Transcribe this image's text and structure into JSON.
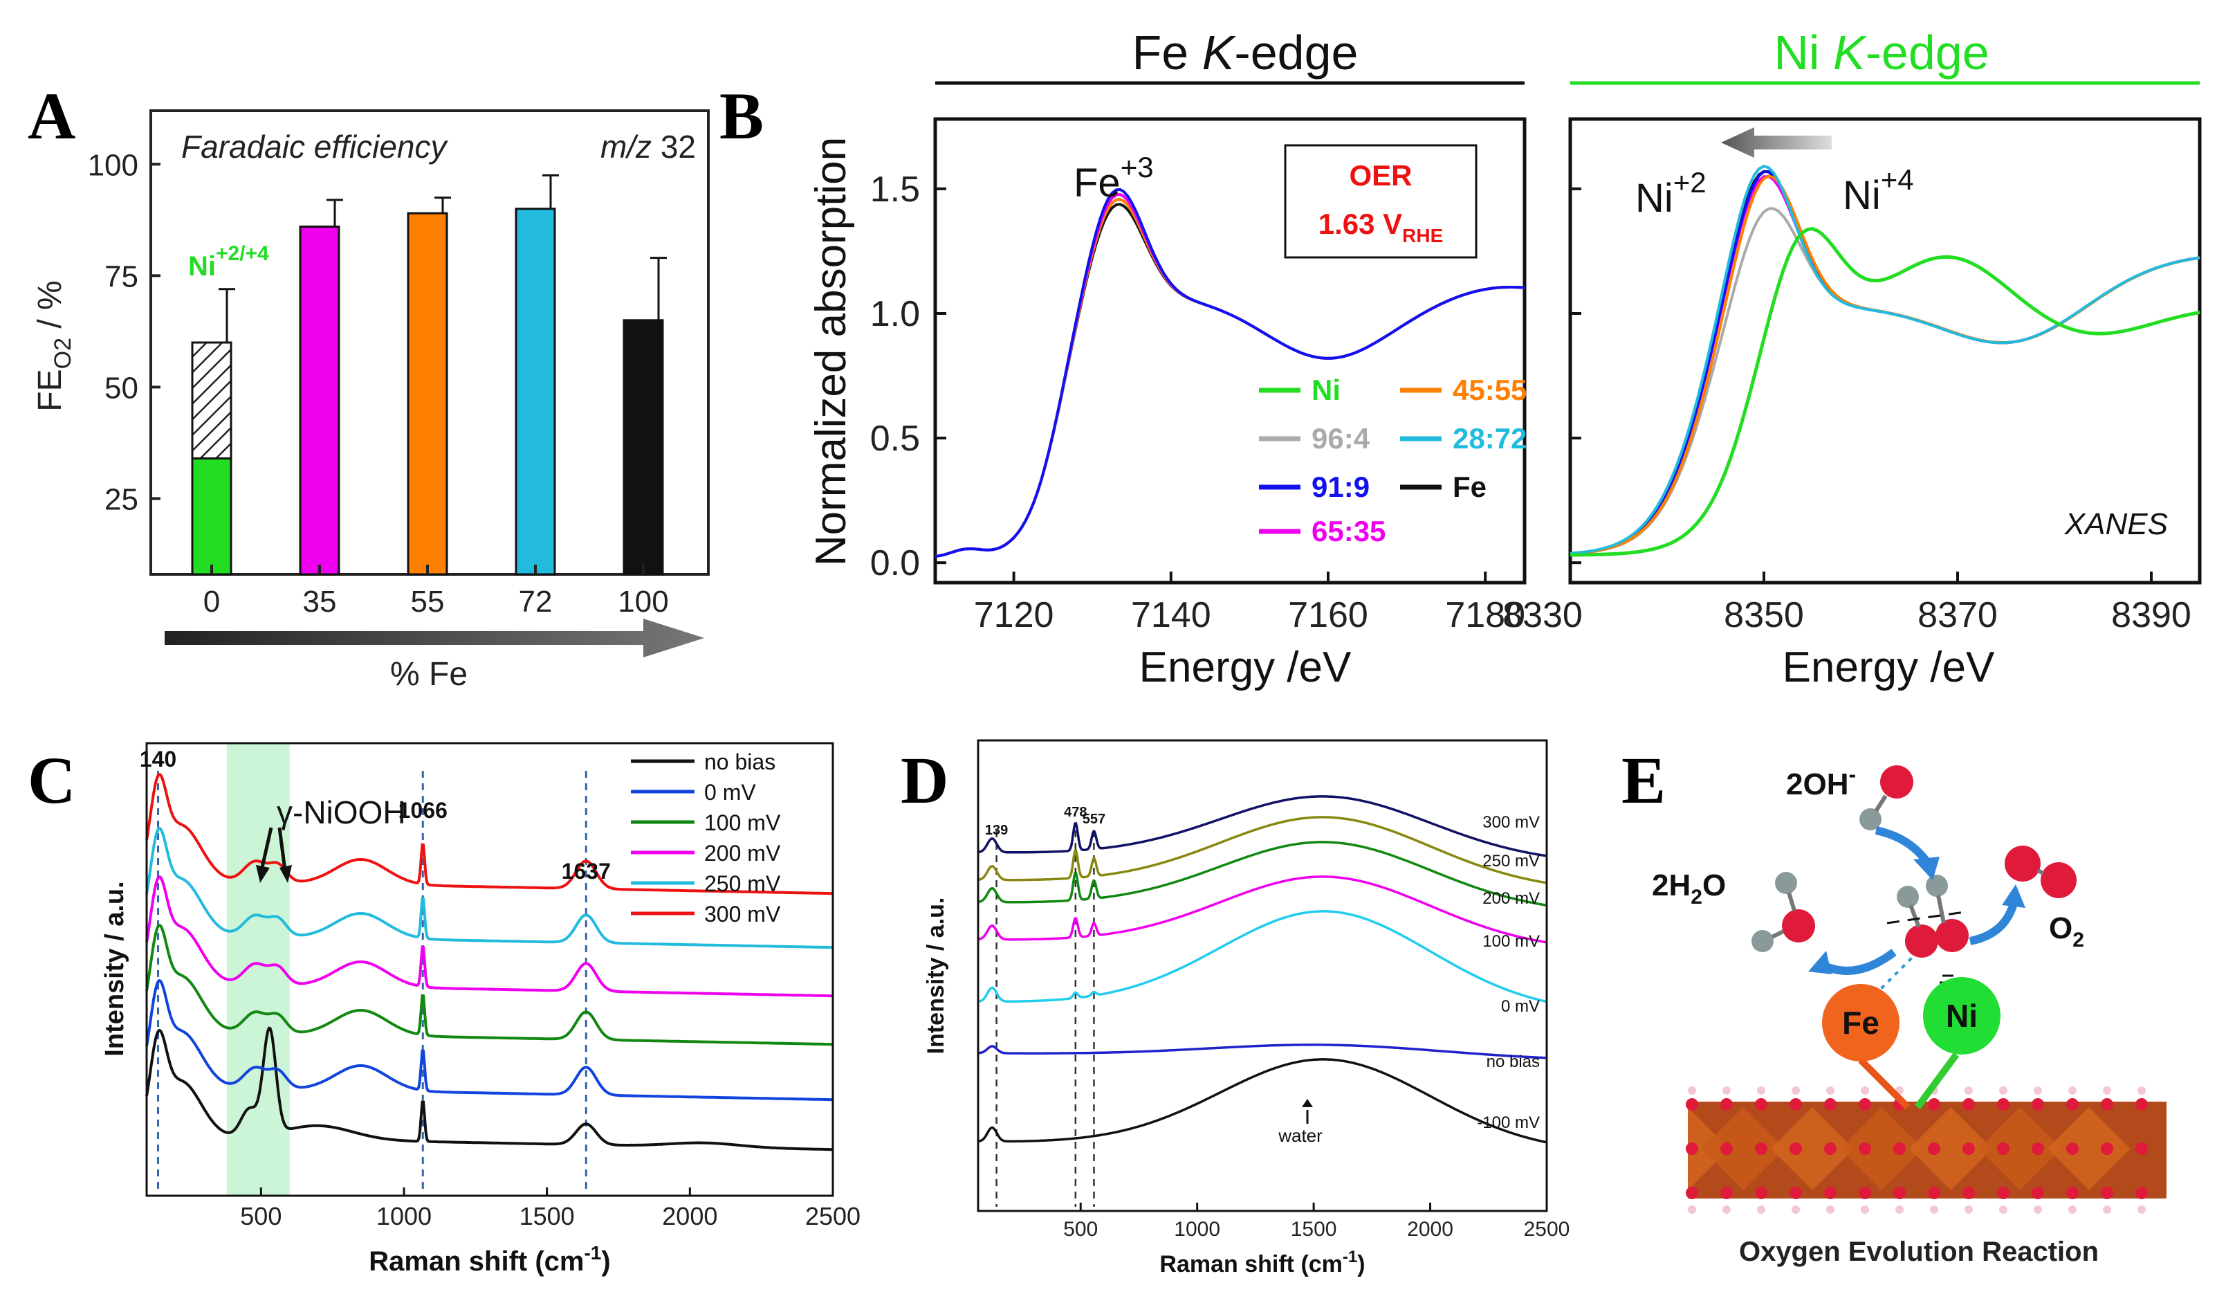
{
  "colors": {
    "ni_green": "#22dd22",
    "magenta": "#ee00ee",
    "orange": "#ff7f00",
    "cyan": "#22bbdd",
    "black": "#111111",
    "gray": "#aaaaaa",
    "blue": "#1111ee",
    "red": "#ee1111",
    "green_dark": "#118811",
    "olive": "#888811",
    "highlight": "#ccf5d8"
  },
  "panels": {
    "A": {
      "letter": "A"
    },
    "B": {
      "letter": "B"
    },
    "C": {
      "letter": "C"
    },
    "D": {
      "letter": "D"
    },
    "E": {
      "letter": "E"
    }
  },
  "chart_data": [
    {
      "id": "A",
      "type": "bar",
      "title": "Faradaic efficiency",
      "annotation_right": "m/z 32",
      "ni_label": "Ni",
      "ni_label_sup": "+2/+4",
      "ylabel": "FE",
      "ylabel_sub": "O2",
      "ylabel_unit": " / %",
      "xlabel": "% Fe",
      "ylim": [
        8,
        112
      ],
      "yticks": [
        "25",
        "50",
        "75",
        "100"
      ],
      "categories": [
        "0",
        "35",
        "55",
        "72",
        "100"
      ],
      "values": [
        60,
        86,
        89,
        90,
        65
      ],
      "errors": [
        12,
        6,
        3.5,
        7.5,
        14
      ],
      "colors": [
        "#22dd22",
        "#ee00ee",
        "#ff7f00",
        "#22bbdd",
        "#111111"
      ],
      "hatched_part": {
        "category": "0",
        "solid_to": 34,
        "hatched_to": 60
      }
    },
    {
      "id": "B",
      "type": "line",
      "header_left": "Fe K-edge",
      "header_right": "Ni K-edge",
      "header_left_parts": [
        "Fe ",
        "K",
        "-edge"
      ],
      "header_right_parts": [
        "Ni ",
        "K",
        "-edge"
      ],
      "ylabel": "Normalized absorption",
      "xlabel": "Energy /eV",
      "ylim": [
        -0.08,
        1.78
      ],
      "yticks": [
        "0.0",
        "0.5",
        "1.0",
        "1.5"
      ],
      "left_xlim": [
        7110,
        7185
      ],
      "left_xticks": [
        "7120",
        "7140",
        "7160",
        "7180"
      ],
      "right_xlim": [
        8330,
        8395
      ],
      "right_xticks": [
        "8330",
        "8350",
        "8370",
        "8390"
      ],
      "fe_label": "Fe",
      "fe_label_sup": "+3",
      "ni2_label": "Ni",
      "ni2_sup": "+2",
      "ni4_label": "Ni",
      "ni4_sup": "+4",
      "oer_line1": "OER",
      "oer_line2": "1.63 V",
      "oer_sub": "RHE",
      "xanes": "XANES",
      "legend": [
        "Ni",
        "96:4",
        "91:9",
        "65:35",
        "45:55",
        "28:72",
        "Fe"
      ],
      "legend_colors": [
        "#22dd22",
        "#aaaaaa",
        "#1111ee",
        "#ee00ee",
        "#ff7f00",
        "#22bbdd",
        "#111111"
      ]
    },
    {
      "id": "C",
      "type": "line",
      "ylabel": "Intensity / a.u.",
      "xlabel": "Raman shift (cm",
      "xlabel_sup": "-1",
      "xlabel_end": ")",
      "xlim": [
        100,
        2500
      ],
      "xticks": [
        "500",
        "1000",
        "1500",
        "2000",
        "2500"
      ],
      "peaks": [
        "140",
        "1066",
        "1637"
      ],
      "peak_positions": [
        140,
        1066,
        1637
      ],
      "gamma_label": "γ-NiOOH",
      "highlight_range": [
        380,
        600
      ],
      "series": [
        "no bias",
        "0 mV",
        "100 mV",
        "200 mV",
        "250 mV",
        "300 mV"
      ],
      "series_colors": [
        "#111111",
        "#1144dd",
        "#118811",
        "#ee00ee",
        "#22bbdd",
        "#ee1111"
      ]
    },
    {
      "id": "D",
      "type": "line",
      "ylabel": "Intensity / a.u.",
      "xlabel": "Raman shift (cm",
      "xlabel_sup": "-1",
      "xlabel_end": ")",
      "xlim": [
        60,
        2500
      ],
      "xticks": [
        "500",
        "1000",
        "1500",
        "2000",
        "2500"
      ],
      "peaks": [
        "139",
        "478",
        "557"
      ],
      "peak_positions": [
        139,
        478,
        557
      ],
      "water_label": "water",
      "series": [
        "300 mV",
        "250 mV",
        "200 mV",
        "100 mV",
        "0 mV",
        "no bias",
        "-100 mV"
      ],
      "series_colors": [
        "#111166",
        "#888811",
        "#118811",
        "#ee00ee",
        "#22ccee",
        "#2222cc",
        "#111111"
      ]
    }
  ],
  "schematic": {
    "ohm_label": "2OH",
    "ohm_sup": "-",
    "water_label": "2H",
    "water_sub": "2",
    "water_end": "O",
    "o2_label": "O",
    "o2_sub": "2",
    "fe_atom": "Fe",
    "ni_atom": "Ni",
    "caption": "Oxygen Evolution Reaction"
  }
}
